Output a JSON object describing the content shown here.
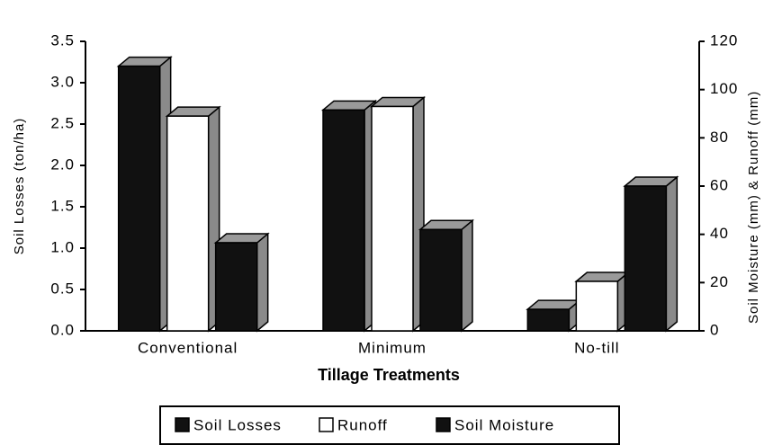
{
  "chart_data": {
    "type": "bar",
    "categories": [
      "Conventional",
      "Minimum",
      "No-till"
    ],
    "x_label": "Tillage Treatments",
    "y_label": "Soil Losses (ton/ha)",
    "y2_label": "Soil Moisture (mm) & Runoff (mm)",
    "ylim": [
      0,
      3.5
    ],
    "yticks": [
      {
        "value": 0,
        "label": "0.0"
      },
      {
        "value": 0.5,
        "label": "0.5"
      },
      {
        "value": 1,
        "label": "1.0"
      },
      {
        "value": 1.5,
        "label": "1.5"
      },
      {
        "value": 2,
        "label": "2.0"
      },
      {
        "value": 2.5,
        "label": "2.5"
      },
      {
        "value": 3,
        "label": "3.0"
      },
      {
        "value": 3.5,
        "label": "3.5"
      }
    ],
    "y2lim": [
      0,
      120
    ],
    "y2ticks": [
      0,
      20,
      40,
      60,
      80,
      100,
      120
    ],
    "legend": "bottom",
    "series": [
      {
        "name": "Soil Losses",
        "color": "#111111",
        "axis": "y",
        "values": [
          3.2,
          2.67,
          0.26
        ]
      },
      {
        "name": "Runoff",
        "color": "#ffffff",
        "axis": "y2",
        "values": [
          89,
          93,
          20.5
        ]
      },
      {
        "name": "Soil Moisture",
        "color": "#111111",
        "axis": "y2",
        "values": [
          36.5,
          42,
          60
        ]
      }
    ]
  }
}
